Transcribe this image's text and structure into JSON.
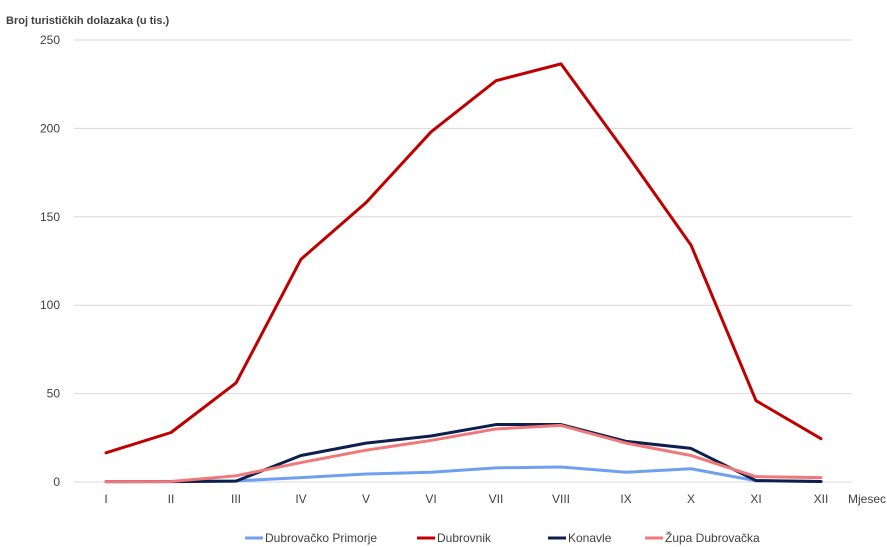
{
  "chart_data": {
    "type": "line",
    "title": "",
    "ylabel": "Broj turističkih dolazaka (u tis.)",
    "xlabel": "Mjesec",
    "categories": [
      "I",
      "II",
      "III",
      "IV",
      "V",
      "VI",
      "VII",
      "VIII",
      "IX",
      "X",
      "XI",
      "XII"
    ],
    "ylim": [
      0,
      250
    ],
    "yticks": [
      0,
      50,
      100,
      150,
      200,
      250
    ],
    "grid": true,
    "legend_position": "bottom",
    "series": [
      {
        "name": "Dubrovačko Primorje",
        "color": "#6fa0f0",
        "values": [
          0.2,
          0.3,
          0.6,
          2.5,
          4.5,
          5.5,
          8.0,
          8.5,
          5.5,
          7.5,
          0.7,
          0.3
        ]
      },
      {
        "name": "Dubrovnik",
        "color": "#c00000",
        "values": [
          16.5,
          28,
          56,
          126,
          158,
          198,
          227,
          236.5,
          186,
          134,
          46,
          24.5
        ]
      },
      {
        "name": "Konavle",
        "color": "#0c1f4f",
        "values": [
          0.2,
          0.2,
          0.5,
          15,
          22,
          26,
          32.5,
          32.5,
          23,
          19,
          0.8,
          0.3
        ]
      },
      {
        "name": "Župa Dubrovačka",
        "color": "#f07878",
        "values": [
          0.2,
          0.3,
          3.5,
          11,
          18,
          23.5,
          30,
          32,
          22,
          15,
          3,
          2.5
        ]
      }
    ]
  }
}
